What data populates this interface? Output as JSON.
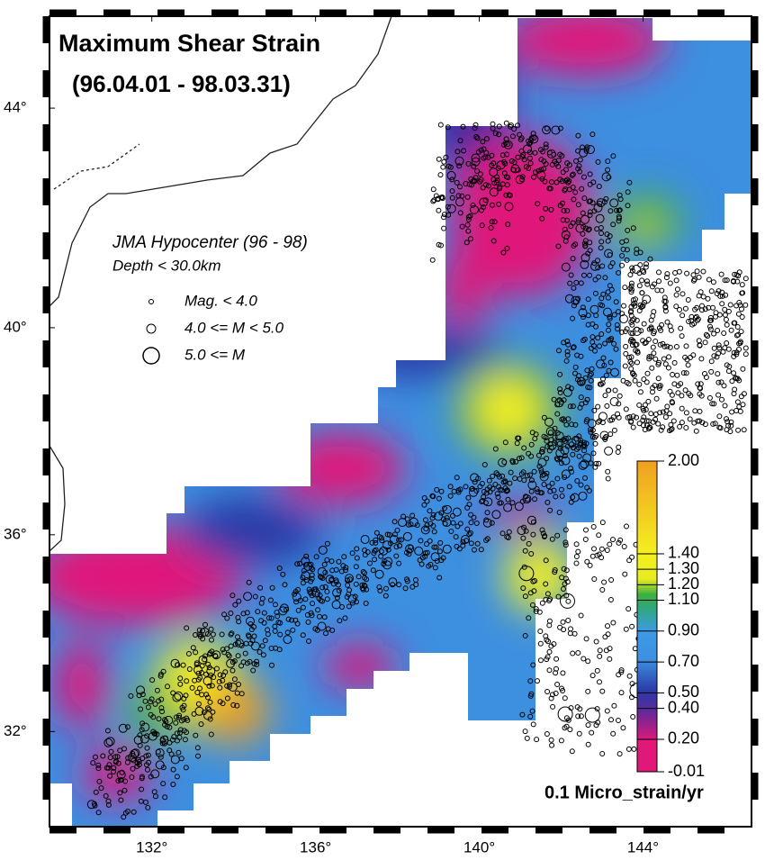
{
  "map": {
    "title": "Maximum Shear Strain",
    "subtitle": "(96.04.01 - 98.03.31)",
    "projection": "mercator",
    "xlim": [
      129.5,
      146.65
    ],
    "ylim": [
      30.0,
      45.6
    ],
    "xticks": [
      {
        "value": 132,
        "label": "132°"
      },
      {
        "value": 136,
        "label": "136°"
      },
      {
        "value": 140,
        "label": "140°"
      },
      {
        "value": 144,
        "label": "144°"
      }
    ],
    "yticks": [
      {
        "value": 32,
        "label": "32°"
      },
      {
        "value": 36,
        "label": "36°"
      },
      {
        "value": 40,
        "label": "40°"
      },
      {
        "value": 44,
        "label": "44°"
      }
    ],
    "legend": {
      "title": "JMA Hypocenter (96 - 98)",
      "subtitle": "Depth < 30.0km",
      "items": [
        "Mag. < 4.0",
        "4.0 <= M < 5.0",
        "5.0 <= M"
      ]
    },
    "colorbar": {
      "label": "0.1 Micro_strain/yr",
      "lim": [
        -0.01,
        2.0
      ],
      "ticks": [
        -0.01,
        {
          "value": 0.2,
          "label": "0.20"
        },
        {
          "value": 0.4,
          "label": "0.40"
        },
        {
          "value": 0.5,
          "label": "0.50"
        },
        {
          "value": 0.7,
          "label": "0.70"
        },
        {
          "value": 0.9,
          "label": "0.90"
        },
        {
          "value": 1.1,
          "label": "1.10"
        },
        {
          "value": 1.2,
          "label": "1.20"
        },
        {
          "value": 1.3,
          "label": "1.30"
        },
        {
          "value": 1.4,
          "label": "1.40"
        },
        {
          "value": 2,
          "label": "2.00"
        }
      ]
    }
  }
}
